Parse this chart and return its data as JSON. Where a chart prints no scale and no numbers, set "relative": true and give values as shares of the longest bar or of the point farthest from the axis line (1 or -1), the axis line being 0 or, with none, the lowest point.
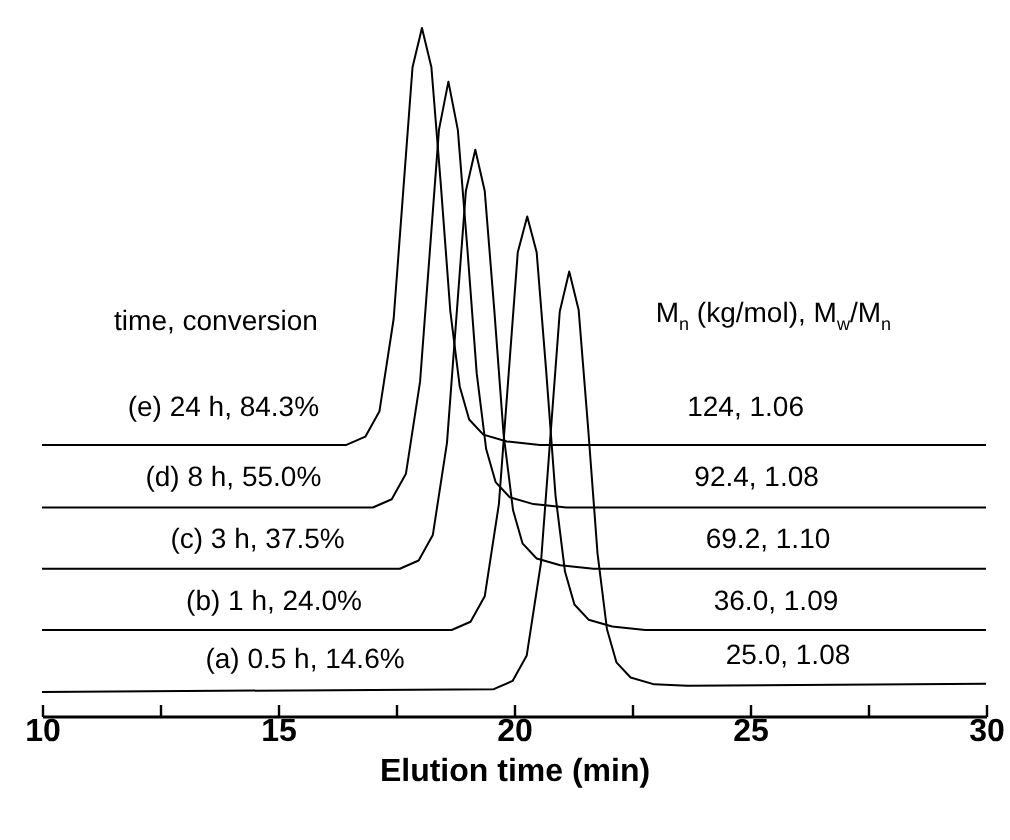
{
  "chart_data": {
    "type": "line",
    "relative": true,
    "xlabel": "Elution time (min)",
    "xlim": [
      10,
      30
    ],
    "xticks": [
      10,
      {
        "value": 12.5,
        "label": null
      },
      15,
      {
        "value": 17.5,
        "label": null
      },
      20,
      {
        "value": 22.5,
        "label": null
      },
      25,
      {
        "value": 27.5,
        "label": null
      },
      30
    ],
    "grid": false,
    "legend": false,
    "marker": "none",
    "line_style": "solid",
    "series": [
      {
        "name": "(e) 24 h, 84.3%",
        "color": "#000000",
        "x": [
          10,
          16.45,
          16.85,
          17.15,
          17.45,
          17.65,
          17.85,
          18.05,
          18.25,
          18.45,
          18.65,
          18.85,
          19.05,
          19.35,
          19.85,
          20.55,
          30
        ],
        "values": [
          0.394,
          0.394,
          0.406,
          0.443,
          0.577,
          0.76,
          0.943,
          1.0,
          0.943,
          0.772,
          0.589,
          0.479,
          0.431,
          0.409,
          0.399,
          0.394,
          0.394
        ]
      },
      {
        "name": "(d) 8 h, 55.0%",
        "color": "#000000",
        "x": [
          10,
          17.01,
          17.41,
          17.71,
          18.01,
          18.21,
          18.41,
          18.61,
          18.81,
          19.01,
          19.21,
          19.41,
          19.61,
          19.91,
          20.41,
          21.11,
          30
        ],
        "values": [
          0.303,
          0.303,
          0.315,
          0.352,
          0.486,
          0.669,
          0.852,
          0.922,
          0.852,
          0.681,
          0.498,
          0.388,
          0.34,
          0.318,
          0.308,
          0.303,
          0.303
        ]
      },
      {
        "name": "(c) 3 h, 37.5%",
        "color": "#000000",
        "x": [
          10,
          17.58,
          17.98,
          18.28,
          18.58,
          18.78,
          18.98,
          19.18,
          19.38,
          19.58,
          19.78,
          19.98,
          20.18,
          20.48,
          20.98,
          21.68,
          30
        ],
        "values": [
          0.214,
          0.214,
          0.226,
          0.263,
          0.397,
          0.58,
          0.763,
          0.823,
          0.763,
          0.592,
          0.409,
          0.299,
          0.251,
          0.229,
          0.219,
          0.214,
          0.214
        ]
      },
      {
        "name": "(b) 1 h, 24.0%",
        "color": "#000000",
        "x": [
          10,
          18.68,
          19.08,
          19.38,
          19.68,
          19.88,
          20.08,
          20.28,
          20.48,
          20.68,
          20.88,
          21.08,
          21.28,
          21.58,
          22.08,
          22.78,
          30
        ],
        "values": [
          0.125,
          0.125,
          0.137,
          0.174,
          0.308,
          0.491,
          0.674,
          0.726,
          0.674,
          0.503,
          0.32,
          0.21,
          0.162,
          0.14,
          0.13,
          0.125,
          0.125
        ]
      },
      {
        "name": "(a) 0.5 h, 14.6%",
        "color": "#000000",
        "x": [
          10,
          19.57,
          19.97,
          20.27,
          20.57,
          20.77,
          20.97,
          21.17,
          21.37,
          21.57,
          21.77,
          21.97,
          22.17,
          22.47,
          22.97,
          23.67,
          30
        ],
        "values": [
          0.035,
          0.039,
          0.051,
          0.088,
          0.222,
          0.405,
          0.588,
          0.646,
          0.59,
          0.419,
          0.236,
          0.126,
          0.078,
          0.056,
          0.046,
          0.044,
          0.047
        ]
      }
    ],
    "annotations": [
      "time, conversion",
      "M$_{n}$ (kg/mol), M$_{w}$/M$_{n}$",
      "124, 1.06",
      "92.4, 1.08",
      "69.2, 1.10",
      "36.0, 1.09",
      "25.0, 1.08"
    ]
  }
}
